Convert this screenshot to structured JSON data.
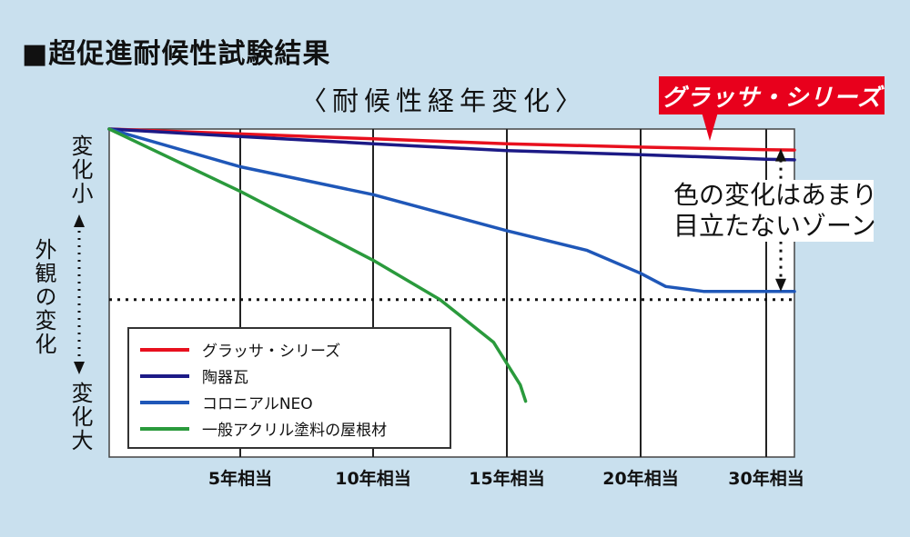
{
  "header": {
    "title": "■超促進耐候性試験結果",
    "subtitle": "〈耐候性経年変化〉"
  },
  "callout": "グラッサ・シリーズ",
  "zone_note": [
    "色の変化はあまり",
    "目立たないゾーン"
  ],
  "y_axis": {
    "top_label": "変化小",
    "middle_label": "外観の変化",
    "bottom_label": "変化大"
  },
  "chart_data": {
    "type": "line",
    "title": "〈耐候性経年変化〉",
    "xlabel": "",
    "ylabel": "外観の変化",
    "x_tick_labels": [
      "5年相当",
      "10年相当",
      "15年相当",
      "20年相当",
      "30年相当"
    ],
    "x_ticks": [
      5,
      10,
      15,
      20,
      30
    ],
    "xlim": [
      0,
      31
    ],
    "ylim": [
      0,
      100
    ],
    "y_direction": "0 = 変化小 (top), 100 = 変化大 (bottom)",
    "grid": true,
    "legend_position": "bottom-left",
    "threshold": {
      "y": 52,
      "style": "dotted"
    },
    "series": [
      {
        "name": "グラッサ・シリーズ",
        "color": "#e8101e",
        "x": [
          0,
          5,
          10,
          15,
          20,
          30,
          31
        ],
        "y": [
          0,
          1.5,
          3,
          4.5,
          5.5,
          6.3,
          6.4
        ]
      },
      {
        "name": "陶器瓦",
        "color": "#1c1a86",
        "x": [
          0,
          5,
          10,
          15,
          20,
          30,
          31
        ],
        "y": [
          0,
          2.3,
          4.5,
          6.6,
          7.8,
          9.2,
          9.4
        ]
      },
      {
        "name": "コロニアルNEO",
        "color": "#1f57b8",
        "x": [
          0,
          5,
          10,
          15,
          18,
          20,
          22,
          25,
          30,
          31
        ],
        "y": [
          0,
          11.5,
          20,
          31,
          37,
          44,
          48,
          49.5,
          49.5,
          49.5
        ]
      },
      {
        "name": "一般アクリル塗料の屋根材",
        "color": "#2a9a3c",
        "x": [
          0,
          5,
          10,
          12.5,
          14.5,
          15.5,
          15.7
        ],
        "y": [
          0,
          19,
          40,
          52,
          65,
          78,
          83
        ]
      }
    ]
  }
}
